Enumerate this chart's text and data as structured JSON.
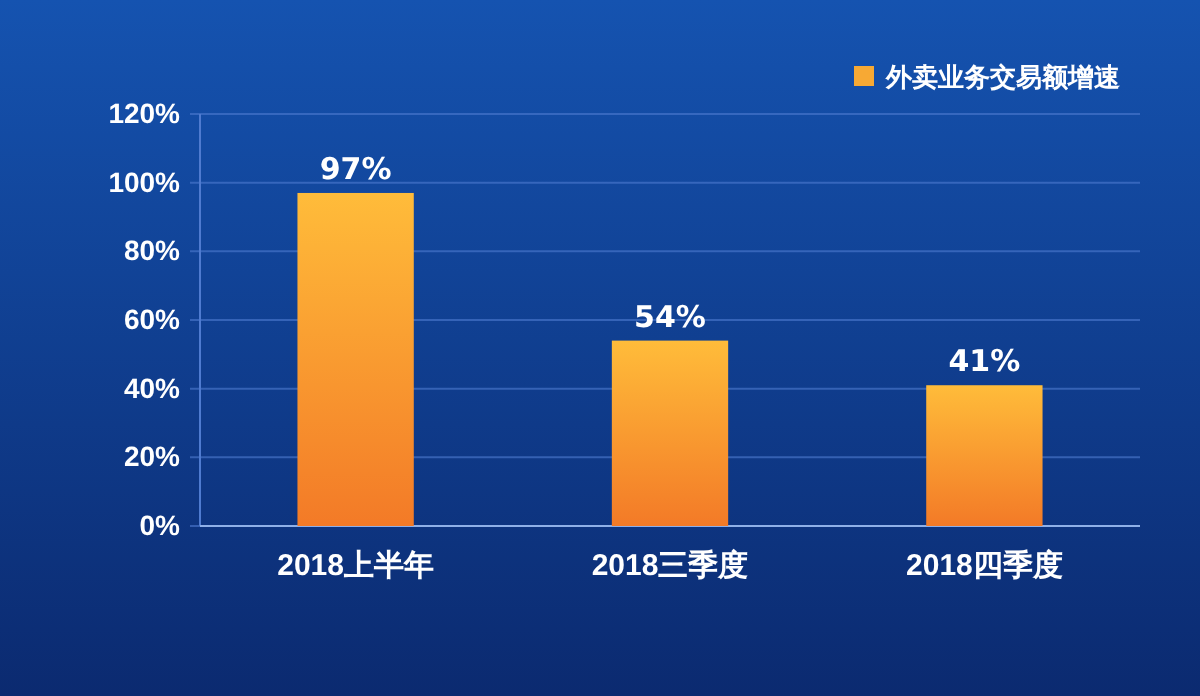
{
  "chart_data": {
    "type": "bar",
    "categories": [
      "2018上半年",
      "2018三季度",
      "2018四季度"
    ],
    "series": [
      {
        "name": "外卖业务交易额增速",
        "color": "#f7a934",
        "values": [
          97,
          54,
          41
        ],
        "value_labels": [
          "97%",
          "54%",
          "41%"
        ]
      }
    ],
    "ylim": [
      0,
      120
    ],
    "yticks": [
      {
        "value": 0,
        "label": "0%"
      },
      {
        "value": 20,
        "label": "20%"
      },
      {
        "value": 40,
        "label": "40%"
      },
      {
        "value": 60,
        "label": "60%"
      },
      {
        "value": 80,
        "label": "80%"
      },
      {
        "value": 100,
        "label": "100%"
      },
      {
        "value": 120,
        "label": "120%"
      }
    ],
    "grid": "y",
    "legend": "top right"
  }
}
